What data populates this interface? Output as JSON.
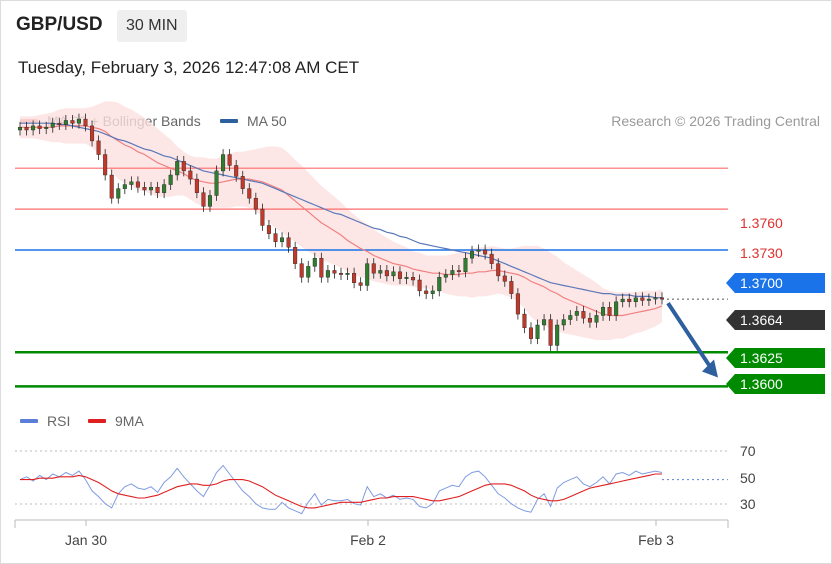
{
  "header": {
    "pair": "GBP/USD",
    "timeframe": "30 MIN",
    "datetime": "Tuesday, February 3, 2026 12:47:08 AM CET",
    "credit": "Research © 2026 Trading Central"
  },
  "legend": [
    {
      "label": "MA 20 + Bollinger Bands",
      "color": "#f08080"
    },
    {
      "label": "MA 50",
      "color": "#2e5f9e"
    }
  ],
  "rsi_legend": [
    {
      "label": "RSI",
      "color": "#5b7fd6"
    },
    {
      "label": "9MA",
      "color": "#e02020"
    }
  ],
  "chart_data": [
    {
      "type": "candlestick",
      "ylim": [
        1.359,
        1.381
      ],
      "x_ticks": [
        "Jan 30",
        "Feb 2",
        "Feb 3"
      ],
      "levels": [
        {
          "value": 1.376,
          "label": "1.3760",
          "kind": "resistance",
          "color": "#ff6b6b"
        },
        {
          "value": 1.373,
          "label": "1.3730",
          "kind": "resistance",
          "color": "#ff6b6b"
        },
        {
          "value": 1.37,
          "label": "1.3700",
          "kind": "pivot",
          "color": "#1a73e8"
        },
        {
          "value": 1.3664,
          "label": "1.3664",
          "kind": "last-price",
          "color": "#333333"
        },
        {
          "value": 1.3625,
          "label": "1.3625",
          "kind": "support",
          "color": "#008a00"
        },
        {
          "value": 1.36,
          "label": "1.3600",
          "kind": "support",
          "color": "#008a00"
        }
      ],
      "forecast": {
        "from": 1.3664,
        "to": 1.3605,
        "direction": "down",
        "color": "#2e5f9e"
      },
      "close": [
        1.379,
        1.3788,
        1.3791,
        1.3789,
        1.379,
        1.3793,
        1.3792,
        1.3795,
        1.3793,
        1.3796,
        1.3791,
        1.378,
        1.377,
        1.3755,
        1.3738,
        1.3745,
        1.3748,
        1.375,
        1.3746,
        1.3744,
        1.3746,
        1.3742,
        1.3748,
        1.3755,
        1.3765,
        1.3758,
        1.3752,
        1.3742,
        1.3732,
        1.374,
        1.3758,
        1.377,
        1.3762,
        1.3754,
        1.3745,
        1.3738,
        1.373,
        1.3718,
        1.3712,
        1.3706,
        1.3709,
        1.3702,
        1.369,
        1.368,
        1.3688,
        1.3694,
        1.368,
        1.3685,
        1.3683,
        1.3682,
        1.3683,
        1.3676,
        1.3674,
        1.369,
        1.3683,
        1.3685,
        1.3681,
        1.3684,
        1.3679,
        1.368,
        1.3678,
        1.367,
        1.3668,
        1.367,
        1.368,
        1.3682,
        1.3685,
        1.3684,
        1.3694,
        1.3699,
        1.37,
        1.3697,
        1.369,
        1.3681,
        1.3677,
        1.3668,
        1.3653,
        1.3643,
        1.3635,
        1.3645,
        1.3649,
        1.363,
        1.3645,
        1.3649,
        1.3652,
        1.3655,
        1.365,
        1.3647,
        1.3652,
        1.3658,
        1.3652,
        1.3662,
        1.3664,
        1.3662,
        1.3665,
        1.3663,
        1.3664,
        1.3665,
        1.3664
      ],
      "ma20": [
        1.379,
        1.379,
        1.379,
        1.379,
        1.379,
        1.379,
        1.3791,
        1.3791,
        1.3791,
        1.3791,
        1.3791,
        1.379,
        1.3789,
        1.3787,
        1.3783,
        1.378,
        1.3777,
        1.3775,
        1.3772,
        1.377,
        1.3767,
        1.3764,
        1.3762,
        1.376,
        1.3758,
        1.3756,
        1.3753,
        1.3751,
        1.375,
        1.3749,
        1.3749,
        1.375,
        1.3751,
        1.3752,
        1.3752,
        1.3752,
        1.3751,
        1.375,
        1.3748,
        1.3746,
        1.3744,
        1.374,
        1.3736,
        1.3732,
        1.3728,
        1.3724,
        1.372,
        1.3717,
        1.3714,
        1.3711,
        1.3707,
        1.3704,
        1.3701,
        1.3699,
        1.3696,
        1.3694,
        1.3692,
        1.369,
        1.3689,
        1.3688,
        1.3686,
        1.3685,
        1.3684,
        1.3683,
        1.3683,
        1.3682,
        1.3682,
        1.3682,
        1.3683,
        1.3683,
        1.3684,
        1.3684,
        1.3685,
        1.3685,
        1.3684,
        1.3683,
        1.3682,
        1.368,
        1.3677,
        1.3675,
        1.3673,
        1.367,
        1.3668,
        1.3665,
        1.3663,
        1.3661,
        1.3659,
        1.3657,
        1.3655,
        1.3653,
        1.3652,
        1.3652,
        1.3652,
        1.3653,
        1.3654,
        1.3655,
        1.3656,
        1.3657,
        1.3659
      ],
      "ma50": [
        1.3793,
        1.3793,
        1.3793,
        1.3793,
        1.3793,
        1.3793,
        1.3792,
        1.3792,
        1.3791,
        1.379,
        1.3789,
        1.3788,
        1.3787,
        1.3785,
        1.3783,
        1.3781,
        1.378,
        1.3778,
        1.3776,
        1.3774,
        1.3773,
        1.3771,
        1.3769,
        1.3768,
        1.3766,
        1.3764,
        1.3762,
        1.376,
        1.3758,
        1.3757,
        1.3756,
        1.3755,
        1.3754,
        1.3753,
        1.3752,
        1.3751,
        1.375,
        1.3749,
        1.3747,
        1.3745,
        1.3743,
        1.3741,
        1.3739,
        1.3737,
        1.3735,
        1.3733,
        1.3731,
        1.3729,
        1.3727,
        1.3726,
        1.3724,
        1.3722,
        1.372,
        1.3718,
        1.3716,
        1.3715,
        1.3713,
        1.3712,
        1.371,
        1.3709,
        1.3707,
        1.3705,
        1.3704,
        1.3703,
        1.3702,
        1.3701,
        1.37,
        1.3699,
        1.3698,
        1.3697,
        1.3696,
        1.3695,
        1.3694,
        1.3692,
        1.369,
        1.3688,
        1.3686,
        1.3684,
        1.3682,
        1.368,
        1.3678,
        1.3676,
        1.3675,
        1.3674,
        1.3673,
        1.3672,
        1.3671,
        1.367,
        1.3669,
        1.3668,
        1.3668,
        1.3667,
        1.3667,
        1.3667,
        1.3666,
        1.3666,
        1.3666,
        1.3665,
        1.3665
      ],
      "bb_width": [
        0.0008,
        0.0008,
        0.0008,
        0.0009,
        0.001,
        0.0011,
        0.0012,
        0.0013,
        0.0013,
        0.0013,
        0.0013,
        0.0015,
        0.0018,
        0.0022,
        0.0026,
        0.0028,
        0.0028,
        0.0028,
        0.0028,
        0.0027,
        0.0026,
        0.0025,
        0.0023,
        0.0021,
        0.0018,
        0.0016,
        0.0016,
        0.0017,
        0.0018,
        0.0018,
        0.0018,
        0.0019,
        0.002,
        0.002,
        0.002,
        0.0021,
        0.0023,
        0.0025,
        0.0028,
        0.003,
        0.0031,
        0.0031,
        0.003,
        0.003,
        0.0029,
        0.0028,
        0.0027,
        0.0026,
        0.0025,
        0.0024,
        0.0023,
        0.0022,
        0.0021,
        0.002,
        0.0019,
        0.0018,
        0.0017,
        0.0016,
        0.0015,
        0.0014,
        0.0013,
        0.0013,
        0.0012,
        0.0013,
        0.0013,
        0.0014,
        0.0015,
        0.0016,
        0.0017,
        0.0018,
        0.0018,
        0.0018,
        0.0018,
        0.0017,
        0.0017,
        0.0018,
        0.002,
        0.0023,
        0.0026,
        0.0028,
        0.0028,
        0.0028,
        0.0027,
        0.0026,
        0.0025,
        0.0024,
        0.0023,
        0.0022,
        0.0021,
        0.0019,
        0.0018,
        0.0017,
        0.0017,
        0.0016,
        0.0015,
        0.0015,
        0.0014,
        0.0013,
        0.0012
      ]
    },
    {
      "type": "line",
      "ylim": [
        25,
        78
      ],
      "y_ticks": [
        70,
        50,
        30
      ],
      "reference": 50,
      "rsi": [
        50,
        52,
        49,
        53,
        50,
        54,
        52,
        55,
        53,
        56,
        50,
        42,
        38,
        33,
        30,
        40,
        45,
        47,
        44,
        43,
        45,
        41,
        48,
        52,
        58,
        52,
        47,
        42,
        38,
        46,
        55,
        60,
        54,
        48,
        42,
        38,
        33,
        30,
        29,
        29,
        34,
        30,
        28,
        26,
        34,
        40,
        32,
        36,
        35,
        35,
        36,
        33,
        32,
        45,
        38,
        40,
        37,
        39,
        36,
        37,
        36,
        31,
        30,
        33,
        42,
        44,
        46,
        45,
        52,
        55,
        56,
        52,
        46,
        40,
        37,
        33,
        30,
        28,
        27,
        36,
        40,
        31,
        44,
        48,
        50,
        52,
        47,
        45,
        48,
        52,
        47,
        54,
        55,
        53,
        56,
        54,
        55,
        56,
        55
      ],
      "ma9": [
        50,
        50,
        50,
        51,
        51,
        51,
        52,
        52,
        52,
        53,
        52,
        50,
        48,
        45,
        42,
        40,
        39,
        38,
        37,
        37,
        38,
        39,
        41,
        43,
        45,
        46,
        47,
        47,
        46,
        46,
        47,
        49,
        50,
        50,
        50,
        49,
        47,
        45,
        42,
        39,
        37,
        35,
        33,
        31,
        30,
        30,
        31,
        32,
        33,
        34,
        34,
        34,
        34,
        35,
        36,
        37,
        37,
        38,
        38,
        38,
        38,
        37,
        36,
        35,
        35,
        36,
        37,
        38,
        40,
        42,
        44,
        46,
        47,
        47,
        47,
        46,
        44,
        42,
        39,
        37,
        36,
        35,
        35,
        36,
        38,
        40,
        42,
        44,
        45,
        46,
        47,
        48,
        49,
        50,
        51,
        52,
        53,
        54,
        54
      ]
    }
  ],
  "labels": {
    "r2": "1.3760",
    "r1": "1.3730",
    "pivot": "1.3700",
    "last": "1.3664",
    "s1": "1.3625",
    "s2": "1.3600",
    "rsi70": "70",
    "rsi50": "50",
    "rsi30": "30",
    "x0": "Jan 30",
    "x1": "Feb 2",
    "x2": "Feb 3"
  }
}
